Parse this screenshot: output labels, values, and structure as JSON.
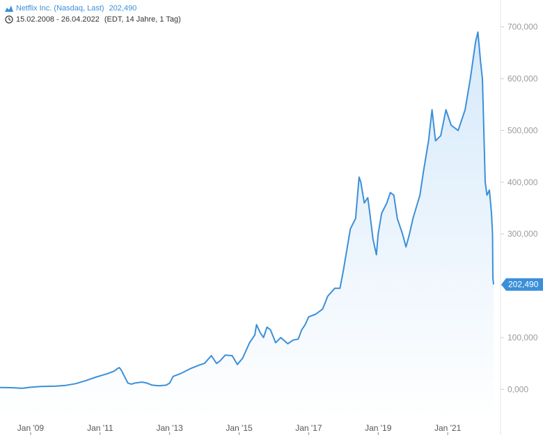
{
  "legend": {
    "series_label": "Netflix Inc. (Nasdaq, Last)",
    "last_value": "202,490",
    "date_range": "15.02.2008 - 26.04.2022",
    "date_meta": "(EDT, 14 Jahre, 1 Tag)",
    "series_icon": "mountain-chart-icon",
    "time_icon": "clock-icon"
  },
  "colors": {
    "line": "#3b8fd9",
    "fill_top": "#d6e9fa",
    "fill_bottom": "#ffffff",
    "axis": "#e6e6e6",
    "last_badge": "#3b8fd9"
  },
  "chart_data": {
    "type": "area",
    "x_unit": "year",
    "xlim": [
      2008.12,
      2022.5
    ],
    "ylim": [
      -60000,
      752000
    ],
    "x_ticks": [
      {
        "value": 2009,
        "label": "Jan '09"
      },
      {
        "value": 2011,
        "label": "Jan '11"
      },
      {
        "value": 2013,
        "label": "Jan '13"
      },
      {
        "value": 2015,
        "label": "Jan '15"
      },
      {
        "value": 2017,
        "label": "Jan '17"
      },
      {
        "value": 2019,
        "label": "Jan '19"
      },
      {
        "value": 2021,
        "label": "Jan '21"
      }
    ],
    "y_ticks": [
      {
        "value": 0,
        "label": "0,000"
      },
      {
        "value": 100000,
        "label": "100,000"
      },
      {
        "value": 200000,
        "label": "200,000"
      },
      {
        "value": 300000,
        "label": "300,000"
      },
      {
        "value": 400000,
        "label": "400,000"
      },
      {
        "value": 500000,
        "label": "500,000"
      },
      {
        "value": 600000,
        "label": "600,000"
      },
      {
        "value": 700000,
        "label": "700,000"
      }
    ],
    "last_value": 202490,
    "last_value_label": "202,490",
    "grid": false,
    "series": [
      {
        "name": "Netflix Inc. (Nasdaq, Last)",
        "points": [
          [
            2008.12,
            3500
          ],
          [
            2008.5,
            3000
          ],
          [
            2008.75,
            2000
          ],
          [
            2009.0,
            4000
          ],
          [
            2009.3,
            5500
          ],
          [
            2009.7,
            6000
          ],
          [
            2010.0,
            7500
          ],
          [
            2010.3,
            11000
          ],
          [
            2010.6,
            17000
          ],
          [
            2010.9,
            24000
          ],
          [
            2011.2,
            30000
          ],
          [
            2011.4,
            35000
          ],
          [
            2011.5,
            40000
          ],
          [
            2011.55,
            42000
          ],
          [
            2011.6,
            38000
          ],
          [
            2011.7,
            25000
          ],
          [
            2011.8,
            12000
          ],
          [
            2011.9,
            10000
          ],
          [
            2012.0,
            12000
          ],
          [
            2012.2,
            14000
          ],
          [
            2012.35,
            12000
          ],
          [
            2012.5,
            8000
          ],
          [
            2012.7,
            7000
          ],
          [
            2012.9,
            8000
          ],
          [
            2013.0,
            12000
          ],
          [
            2013.1,
            25000
          ],
          [
            2013.3,
            30000
          ],
          [
            2013.6,
            40000
          ],
          [
            2013.9,
            48000
          ],
          [
            2014.0,
            50000
          ],
          [
            2014.2,
            65000
          ],
          [
            2014.35,
            50000
          ],
          [
            2014.45,
            55000
          ],
          [
            2014.6,
            66000
          ],
          [
            2014.8,
            65000
          ],
          [
            2014.95,
            48000
          ],
          [
            2015.1,
            60000
          ],
          [
            2015.3,
            90000
          ],
          [
            2015.45,
            105000
          ],
          [
            2015.5,
            125000
          ],
          [
            2015.6,
            110000
          ],
          [
            2015.7,
            100000
          ],
          [
            2015.8,
            120000
          ],
          [
            2015.9,
            115000
          ],
          [
            2016.05,
            90000
          ],
          [
            2016.2,
            100000
          ],
          [
            2016.4,
            88000
          ],
          [
            2016.55,
            95000
          ],
          [
            2016.7,
            97000
          ],
          [
            2016.8,
            115000
          ],
          [
            2016.9,
            125000
          ],
          [
            2017.0,
            140000
          ],
          [
            2017.2,
            145000
          ],
          [
            2017.4,
            155000
          ],
          [
            2017.55,
            180000
          ],
          [
            2017.75,
            195000
          ],
          [
            2017.9,
            195000
          ],
          [
            2018.0,
            230000
          ],
          [
            2018.1,
            270000
          ],
          [
            2018.2,
            310000
          ],
          [
            2018.35,
            330000
          ],
          [
            2018.45,
            410000
          ],
          [
            2018.5,
            400000
          ],
          [
            2018.6,
            360000
          ],
          [
            2018.7,
            370000
          ],
          [
            2018.75,
            345000
          ],
          [
            2018.85,
            290000
          ],
          [
            2018.95,
            260000
          ],
          [
            2019.0,
            300000
          ],
          [
            2019.1,
            340000
          ],
          [
            2019.25,
            360000
          ],
          [
            2019.35,
            380000
          ],
          [
            2019.45,
            375000
          ],
          [
            2019.55,
            330000
          ],
          [
            2019.7,
            300000
          ],
          [
            2019.8,
            275000
          ],
          [
            2019.9,
            300000
          ],
          [
            2020.0,
            330000
          ],
          [
            2020.2,
            375000
          ],
          [
            2020.3,
            420000
          ],
          [
            2020.45,
            480000
          ],
          [
            2020.55,
            540000
          ],
          [
            2020.65,
            480000
          ],
          [
            2020.8,
            490000
          ],
          [
            2020.95,
            540000
          ],
          [
            2021.1,
            510000
          ],
          [
            2021.3,
            500000
          ],
          [
            2021.5,
            540000
          ],
          [
            2021.65,
            600000
          ],
          [
            2021.8,
            670000
          ],
          [
            2021.87,
            690000
          ],
          [
            2021.95,
            630000
          ],
          [
            2022.0,
            600000
          ],
          [
            2022.04,
            500000
          ],
          [
            2022.08,
            400000
          ],
          [
            2022.13,
            375000
          ],
          [
            2022.2,
            385000
          ],
          [
            2022.26,
            340000
          ],
          [
            2022.29,
            300000
          ],
          [
            2022.3,
            215000
          ],
          [
            2022.32,
            202490
          ]
        ]
      }
    ]
  }
}
